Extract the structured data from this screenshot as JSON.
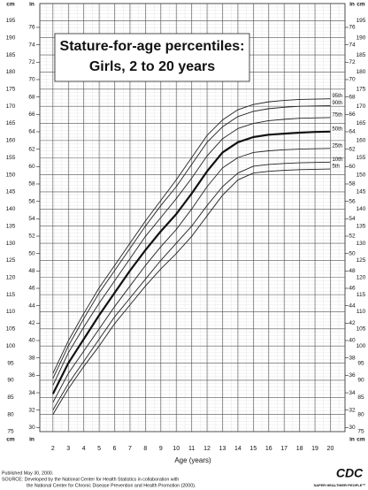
{
  "chart_data": {
    "type": "line",
    "title": "Stature-for-age percentiles:",
    "subtitle": "Girls, 2 to 20 years",
    "x_label": "Age (years)",
    "y_unit": "cm",
    "y2_unit": "in",
    "xlim": [
      1.15,
      20.95
    ],
    "xticks": [
      2,
      3,
      4,
      5,
      6,
      7,
      8,
      9,
      10,
      11,
      12,
      13,
      14,
      15,
      16,
      17,
      18,
      19,
      20
    ],
    "ylim": [
      75,
      200
    ],
    "yticks": [
      75,
      80,
      85,
      90,
      95,
      100,
      105,
      110,
      115,
      120,
      125,
      130,
      135,
      140,
      145,
      150,
      155,
      160,
      165,
      170,
      175,
      180,
      185,
      190,
      195
    ],
    "y2lim": [
      29.53,
      78.74
    ],
    "y2ticks": [
      30,
      32,
      34,
      36,
      38,
      40,
      42,
      44,
      46,
      48,
      50,
      52,
      54,
      56,
      58,
      60,
      62,
      64,
      66,
      68,
      70,
      72,
      74,
      76
    ],
    "grid": true,
    "x": [
      2,
      3,
      4,
      5,
      6,
      7,
      8,
      9,
      10,
      11,
      12,
      13,
      14,
      15,
      16,
      17,
      18,
      19,
      20
    ],
    "series": [
      {
        "name": "95th",
        "color": "#222222",
        "values": [
          92,
          101.5,
          109.5,
          117,
          123.5,
          130,
          136.5,
          142.5,
          148.5,
          155,
          161.5,
          166,
          169,
          170.5,
          171.3,
          171.7,
          172,
          172.1,
          172.2
        ]
      },
      {
        "name": "90th",
        "color": "#222222",
        "values": [
          90.5,
          100,
          108,
          115.5,
          122,
          128.5,
          135,
          141,
          146.5,
          153,
          159.5,
          164,
          167,
          168.5,
          169.3,
          169.7,
          170,
          170.1,
          170.2
        ]
      },
      {
        "name": "75th",
        "color": "#222222",
        "values": [
          88.5,
          98,
          105.5,
          112.5,
          119,
          125.5,
          132,
          137.5,
          143,
          149,
          155.5,
          160.5,
          163.5,
          165,
          165.8,
          166.2,
          166.5,
          166.6,
          166.7
        ]
      },
      {
        "name": "50th",
        "color": "#111111",
        "bold": true,
        "values": [
          86,
          95,
          102,
          109,
          115.5,
          122,
          128,
          133.5,
          138.5,
          144.5,
          151,
          156.5,
          159.5,
          161,
          161.7,
          162,
          162.3,
          162.5,
          162.6
        ]
      },
      {
        "name": "25th",
        "color": "#222222",
        "values": [
          83.5,
          92,
          98.5,
          105,
          111.5,
          117.5,
          123.5,
          129,
          134,
          140,
          146.5,
          152,
          155,
          156.5,
          157,
          157.3,
          157.5,
          157.6,
          157.7
        ]
      },
      {
        "name": "10th",
        "color": "#222222",
        "values": [
          81.3,
          89,
          95.5,
          102,
          108.5,
          114,
          119.5,
          125,
          130,
          135,
          141,
          146.5,
          150.5,
          152.5,
          153,
          153.3,
          153.5,
          153.6,
          153.7
        ]
      },
      {
        "name": "5th",
        "color": "#222222",
        "values": [
          80,
          87.5,
          94,
          100,
          106.5,
          112,
          117.5,
          122.5,
          127,
          132,
          138,
          144,
          148.5,
          150.5,
          151,
          151.3,
          151.5,
          151.6,
          151.7
        ]
      }
    ],
    "footer": [
      "Published May 30, 2000.",
      "SOURCE: Developed by the National Center for Health Statistics in collaboration with",
      "the National Center for Chronic Disease Prevention and Health Promotion (2000)."
    ],
    "logo": {
      "text": "CDC",
      "tagline": "SAFER·HEALTHIER·PEOPLE™"
    }
  }
}
